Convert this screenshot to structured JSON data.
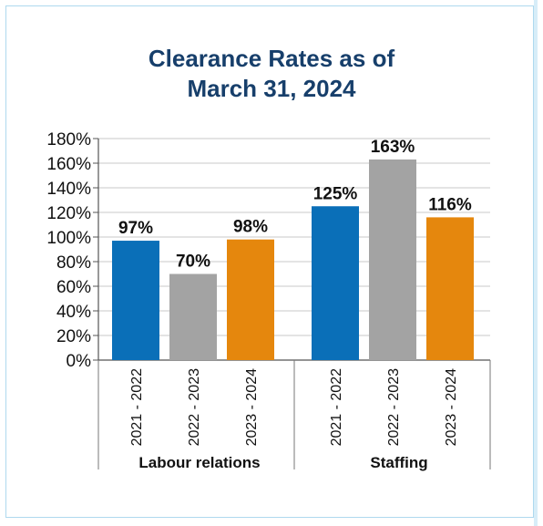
{
  "chart_data": {
    "type": "bar",
    "title_lines": [
      "Clearance Rates as of",
      "March 31, 2024"
    ],
    "ylim": [
      0,
      180
    ],
    "yticks": [
      "0%",
      "20%",
      "40%",
      "60%",
      "80%",
      "100%",
      "120%",
      "140%",
      "160%",
      "180%"
    ],
    "ytick_values": [
      0,
      20,
      40,
      60,
      80,
      100,
      120,
      140,
      160,
      180
    ],
    "grid": true,
    "groups": [
      {
        "name": "Labour relations",
        "categories": [
          "2021-2022",
          "2022-2023",
          "2023-2024"
        ],
        "values": [
          97,
          70,
          98
        ],
        "labels": [
          "97%",
          "70%",
          "98%"
        ]
      },
      {
        "name": "Staffing",
        "categories": [
          "2021-2022",
          "2022-2023",
          "2023-2024"
        ],
        "values": [
          125,
          163,
          116
        ],
        "labels": [
          "125%",
          "163%",
          "116%"
        ]
      }
    ],
    "bar_colors": [
      "#0a6fb8",
      "#a3a3a3",
      "#e5870d"
    ]
  }
}
